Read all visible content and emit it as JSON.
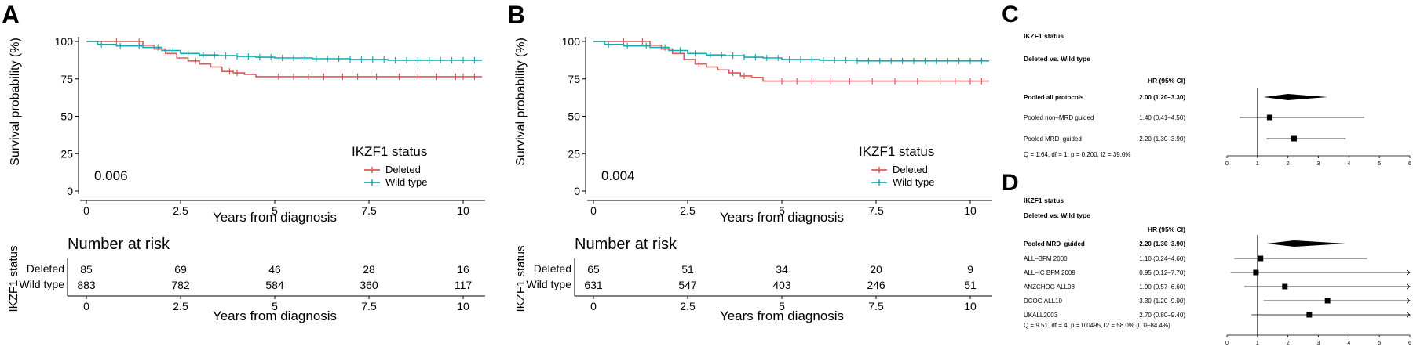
{
  "colors": {
    "deleted": "#e05a5a",
    "wild": "#1aa9b0",
    "axis": "#000000"
  },
  "chart_data": [
    {
      "panel": "A",
      "type": "line",
      "ylabel": "Survival probability (%)",
      "xlabel": "Years from diagnosis",
      "xlim": [
        0,
        10.5
      ],
      "ylim": [
        0,
        100
      ],
      "xticks": [
        "0",
        "2.5",
        "5",
        "7.5",
        "10"
      ],
      "yticks": [
        "0",
        "25",
        "50",
        "75",
        "100"
      ],
      "pvalue": "0.006",
      "legend_title": "IKZF1 status",
      "series": [
        {
          "name": "Deleted",
          "color_key": "deleted",
          "x": [
            0,
            0.8,
            1.5,
            1.8,
            2.1,
            2.4,
            2.7,
            3.0,
            3.3,
            3.6,
            3.9,
            4.2,
            4.5,
            5.0,
            7.5,
            10.5
          ],
          "y": [
            100,
            100,
            97.5,
            95,
            92,
            89,
            87,
            85,
            83,
            80,
            79,
            78,
            76.5,
            76.5,
            76.5,
            76.5
          ],
          "censor": [
            0.8,
            1.4,
            2.9,
            3.8,
            4.0,
            5.1,
            5.5,
            5.9,
            6.3,
            6.8,
            7.2,
            7.7,
            8.3,
            8.8,
            9.3,
            9.8,
            10.0,
            10.3
          ]
        },
        {
          "name": "Wild type",
          "color_key": "wild",
          "x": [
            0,
            0.3,
            0.8,
            1.5,
            2.0,
            2.5,
            3.0,
            3.5,
            4.0,
            4.5,
            5.0,
            6.0,
            7.0,
            8.0,
            9.0,
            10.5
          ],
          "y": [
            100,
            98,
            97,
            96,
            94,
            92,
            91,
            90.5,
            90,
            89.5,
            89,
            88.5,
            88,
            87.5,
            87.5,
            87.5
          ],
          "censor": [
            0.4,
            0.9,
            1.4,
            1.9,
            2.3,
            2.7,
            3.1,
            3.4,
            3.7,
            4.0,
            4.3,
            4.6,
            4.9,
            5.2,
            5.5,
            5.8,
            6.1,
            6.4,
            6.7,
            7.0,
            7.3,
            7.6,
            7.9,
            8.2,
            8.5,
            8.8,
            9.1,
            9.4,
            9.7,
            10.0,
            10.3
          ]
        }
      ],
      "risk": {
        "title": "Number at risk",
        "side_label": "IKZF1 status",
        "rows": [
          {
            "name": "Deleted",
            "color_key": "deleted",
            "values": [
              "85",
              "69",
              "46",
              "28",
              "16"
            ]
          },
          {
            "name": "Wild type",
            "color_key": "wild",
            "values": [
              "883",
              "782",
              "584",
              "360",
              "117"
            ]
          }
        ],
        "xticks": [
          "0",
          "2.5",
          "5",
          "7.5",
          "10"
        ],
        "xlabel": "Years from diagnosis"
      }
    },
    {
      "panel": "B",
      "type": "line",
      "ylabel": "Survival probability (%)",
      "xlabel": "Years from diagnosis",
      "xlim": [
        0,
        10.5
      ],
      "ylim": [
        0,
        100
      ],
      "xticks": [
        "0",
        "2.5",
        "5",
        "7.5",
        "10"
      ],
      "yticks": [
        "0",
        "25",
        "50",
        "75",
        "100"
      ],
      "pvalue": "0.004",
      "legend_title": "IKZF1 status",
      "series": [
        {
          "name": "Deleted",
          "color_key": "deleted",
          "x": [
            0,
            0.8,
            1.5,
            1.8,
            2.1,
            2.4,
            2.7,
            3.0,
            3.3,
            3.6,
            3.9,
            4.2,
            4.5,
            5.0,
            7.5,
            10.5
          ],
          "y": [
            100,
            100,
            97.5,
            95,
            92,
            88,
            85,
            83,
            81,
            79,
            77,
            76,
            73.5,
            73.5,
            73.5,
            73.5
          ],
          "censor": [
            0.8,
            1.3,
            2.8,
            3.7,
            4.0,
            5.0,
            5.4,
            5.8,
            6.3,
            6.8,
            7.4,
            8.0,
            8.6,
            9.2,
            9.6,
            10.0,
            10.3
          ]
        },
        {
          "name": "Wild type",
          "color_key": "wild",
          "x": [
            0,
            0.3,
            0.8,
            1.5,
            2.0,
            2.5,
            3.0,
            3.5,
            4.0,
            4.5,
            5.0,
            6.0,
            7.0,
            8.0,
            9.0,
            10.5
          ],
          "y": [
            100,
            98,
            97,
            96,
            94,
            92,
            91,
            90.5,
            89.5,
            89,
            88,
            87.5,
            87,
            87,
            87,
            87
          ],
          "censor": [
            0.4,
            0.9,
            1.4,
            1.9,
            2.3,
            2.7,
            3.1,
            3.4,
            3.7,
            4.0,
            4.3,
            4.6,
            4.9,
            5.2,
            5.5,
            5.8,
            6.1,
            6.4,
            6.7,
            7.0,
            7.3,
            7.6,
            7.9,
            8.2,
            8.5,
            8.8,
            9.1,
            9.4,
            9.7,
            10.0,
            10.3
          ]
        }
      ],
      "risk": {
        "title": "Number at risk",
        "side_label": "IKZF1 status",
        "rows": [
          {
            "name": "Deleted",
            "color_key": "deleted",
            "values": [
              "65",
              "51",
              "34",
              "20",
              "9"
            ]
          },
          {
            "name": "Wild type",
            "color_key": "wild",
            "values": [
              "631",
              "547",
              "403",
              "246",
              "51"
            ]
          }
        ],
        "xticks": [
          "0",
          "2.5",
          "5",
          "7.5",
          "10"
        ],
        "xlabel": "Years from diagnosis"
      }
    },
    {
      "panel": "C",
      "type": "forest",
      "title": "IKZF1 status",
      "subtitle": "Deleted vs. Wild type",
      "hr_header": "HR (95% CI)",
      "xlim": [
        0,
        6
      ],
      "ref": 1,
      "xticks": [
        "0",
        "1",
        "2",
        "3",
        "4",
        "5",
        "6"
      ],
      "rows": [
        {
          "label": "Pooled all protocols",
          "hr_text": "2.00 (1.20–3.30)",
          "hr": 2.0,
          "lo": 1.2,
          "hi": 3.3,
          "pooled": true
        },
        {
          "label": "Pooled non–MRD guided",
          "hr_text": "1.40 (0.41–4.50)",
          "hr": 1.4,
          "lo": 0.41,
          "hi": 4.5,
          "pooled": false
        },
        {
          "label": "Pooled MRD–guided",
          "hr_text": "2.20 (1.30–3.90)",
          "hr": 2.2,
          "lo": 1.3,
          "hi": 3.9,
          "pooled": false
        }
      ],
      "note": "Q = 1.64, df = 1, p = 0.200, I2 = 39.0%"
    },
    {
      "panel": "D",
      "type": "forest",
      "title": "IKZF1 status",
      "subtitle": "Deleted vs. Wild type",
      "hr_header": "HR (95% CI)",
      "xlim": [
        0,
        6
      ],
      "ref": 1,
      "xticks": [
        "0",
        "1",
        "2",
        "3",
        "4",
        "5",
        "6"
      ],
      "rows": [
        {
          "label": "Pooled MRD–guided",
          "hr_text": "2.20 (1.30–3.90)",
          "hr": 2.2,
          "lo": 1.3,
          "hi": 3.9,
          "pooled": true
        },
        {
          "label": "ALL–BFM 2000",
          "hr_text": "1.10 (0.24–4.60)",
          "hr": 1.1,
          "lo": 0.24,
          "hi": 4.6,
          "pooled": false
        },
        {
          "label": "ALL–IC BFM 2009",
          "hr_text": "0.95 (0.12–7.70)",
          "hr": 0.95,
          "lo": 0.12,
          "hi": 7.7,
          "pooled": false
        },
        {
          "label": "ANZCHOG ALL08",
          "hr_text": "1.90 (0.57–6.60)",
          "hr": 1.9,
          "lo": 0.57,
          "hi": 6.6,
          "pooled": false
        },
        {
          "label": "DCOG ALL10",
          "hr_text": "3.30 (1.20–9.00)",
          "hr": 3.3,
          "lo": 1.2,
          "hi": 9.0,
          "pooled": false
        },
        {
          "label": "UKALL2003",
          "hr_text": "2.70 (0.80–9.40)",
          "hr": 2.7,
          "lo": 0.8,
          "hi": 9.4,
          "pooled": false
        }
      ],
      "note": "Q = 9.51, df = 4, p = 0.0495, I2 = 58.0% (0.0–84.4%)"
    }
  ]
}
